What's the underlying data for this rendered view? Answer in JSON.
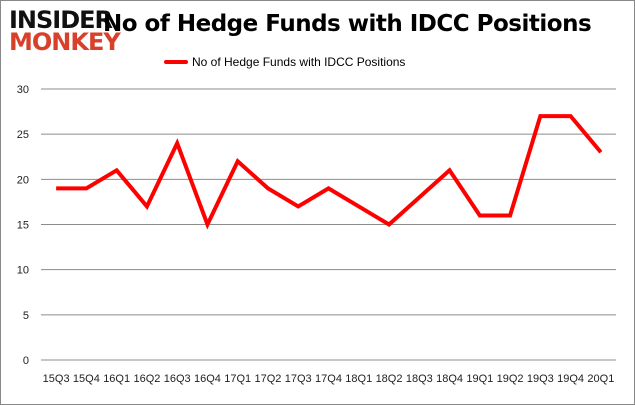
{
  "logo": {
    "line1": "INSIDER",
    "line2": "MONKEY"
  },
  "chart_data": {
    "type": "line",
    "title": "No of Hedge Funds with IDCC Positions",
    "categories": [
      "15Q3",
      "15Q4",
      "16Q1",
      "16Q2",
      "16Q3",
      "16Q4",
      "17Q1",
      "17Q2",
      "17Q3",
      "17Q4",
      "18Q1",
      "18Q2",
      "18Q3",
      "18Q4",
      "19Q1",
      "19Q2",
      "19Q3",
      "19Q4",
      "20Q1"
    ],
    "series": [
      {
        "name": "No of Hedge Funds with IDCC Positions",
        "values": [
          19,
          19,
          21,
          17,
          24,
          15,
          22,
          19,
          17,
          19,
          17,
          15,
          18,
          21,
          16,
          16,
          27,
          27,
          23
        ],
        "color": "#ff0000"
      }
    ],
    "ylim": [
      0,
      30
    ],
    "yticks": [
      0,
      5,
      10,
      15,
      20,
      25,
      30
    ],
    "grid": true,
    "legend": "top-center",
    "xlabel": "",
    "ylabel": ""
  }
}
